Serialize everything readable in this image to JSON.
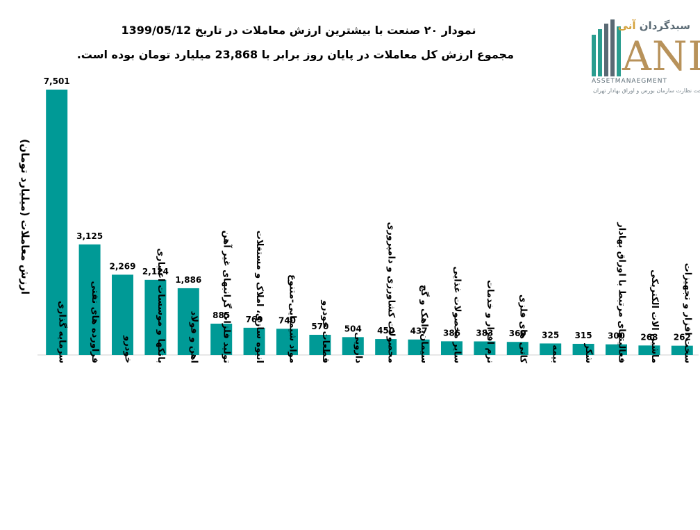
{
  "title_line1": "نمودار ۲۰ صنعت با بیشترین ارزش معاملات در تاریخ 1399/05/12",
  "title_line2": "مجموع ارزش  کل معاملات در پایان روز برابر با 23,868 میلیارد تومان بوده است.",
  "logo": {
    "ar_text_main": "سبدگردان ",
    "ar_text_accent": "آنی",
    "mark": "ANI",
    "en_text": "ASSETMANAEGMENT",
    "sub_text": "تحت نظارت سازمان بورس و اوراق بهادار تهران"
  },
  "colors": {
    "bar": "#009a96",
    "logo_gold": "#b8925a",
    "logo_teal": "#2a9d8f"
  },
  "chart_data": {
    "type": "bar",
    "title": "نمودار ۲۰ صنعت با بیشترین ارزش معاملات در تاریخ 1399/05/12",
    "ylabel": "ارزش معاملات (میلیارد تومان)",
    "xlabel": "",
    "ylim": [
      0,
      7600
    ],
    "grid": false,
    "categories": [
      "سرمایه گذاری",
      "فراورده های نفتی",
      "خودرو",
      "بانکها و موسسات اعتباری",
      "اهن و فولاد",
      "تولید فلزات گرانبهای غیر آهن",
      "انبوه سازی، املاک و مستغلات",
      "مواد شیمیایی-متنوع",
      "قطعات خودرو",
      "دارویی",
      "محصولات کشاورزی و دامپروری",
      "سیمان، اهک و گچ",
      "سایر محصولات غذایی",
      "نرم افزار و خدمات",
      "کانی های فلزی",
      "بیمه",
      "شکر",
      "فعالیتهای مرتبط با اوراق بهادار",
      "ماشین الات الکتریکی",
      "سخت افزار و تجهیزات"
    ],
    "values": [
      7501,
      3125,
      2269,
      2124,
      1886,
      885,
      769,
      740,
      570,
      504,
      450,
      437,
      386,
      383,
      369,
      325,
      315,
      300,
      268,
      262
    ],
    "value_labels": [
      "7,501",
      "3,125",
      "2,269",
      "2,124",
      "1,886",
      "885",
      "769",
      "740",
      "570",
      "504",
      "450",
      "437",
      "386",
      "383",
      "369",
      "325",
      "315",
      "300",
      "268",
      "262"
    ]
  }
}
